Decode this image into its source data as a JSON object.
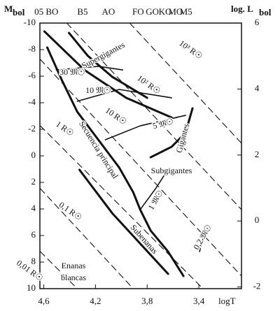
{
  "chart_data": {
    "type": "hr-diagram",
    "ylabel": "M",
    "ylabel_sub": "bol",
    "y2label": "log. L",
    "y2label_sub": "bol",
    "xlabel": "logT",
    "xlim": [
      4.63,
      3.07
    ],
    "xticks": [
      {
        "value": 4.6,
        "label": "4,6"
      },
      {
        "value": 4.2,
        "label": "4,2"
      },
      {
        "value": 3.8,
        "label": "3,8"
      },
      {
        "value": 3.4,
        "label": "3,4"
      }
    ],
    "ylim": [
      -10,
      10
    ],
    "yticks": [
      -10,
      -8,
      -6,
      -4,
      -2,
      0,
      2,
      4,
      6,
      8,
      10
    ],
    "y2lim": [
      6,
      -2.05
    ],
    "y2ticks": [
      6,
      4,
      2,
      0,
      -2
    ],
    "top_ticks": [
      {
        "value": 4.58,
        "label": "05 BO"
      },
      {
        "value": 4.3,
        "label": "B5"
      },
      {
        "value": 4.1,
        "label": "AO"
      },
      {
        "value": 3.87,
        "label": "FO"
      },
      {
        "value": 3.76,
        "label": "GO"
      },
      {
        "value": 3.66,
        "label": "KO"
      },
      {
        "value": 3.58,
        "label": "MO"
      },
      {
        "value": 3.5,
        "label": "M5"
      }
    ],
    "color": "#111111",
    "series": [
      {
        "style": "thick",
        "x": [
          4.573,
          4.459,
          4.341,
          4.178,
          4.016,
          3.908,
          3.854,
          3.773,
          3.638,
          3.519
        ],
        "y": [
          -8.16,
          -5.68,
          -3.32,
          -1.21,
          0.89,
          2.74,
          4.05,
          5.63,
          7.21,
          9.05
        ]
      },
      {
        "style": "thick",
        "x": [
          4.595,
          4.286,
          3.962,
          3.611
        ],
        "y": [
          -9.37,
          -6.47,
          -4.37,
          -2.89
        ]
      },
      {
        "style": "thick",
        "x": [
          4.405,
          4.259,
          4.07,
          3.8
        ],
        "y": [
          -9.26,
          -7.53,
          -5.95,
          -4.37
        ]
      },
      {
        "style": "thick",
        "x": [
          3.449,
          3.503,
          3.611,
          3.773
        ],
        "y": [
          -3.58,
          -1.74,
          -0.68,
          0.11
        ]
      },
      {
        "style": "thick",
        "x": [
          4.324,
          4.07,
          3.638
        ],
        "y": [
          1.05,
          4.32,
          8.89
        ]
      },
      {
        "style": "thin",
        "x": [
          4.503,
          4.178,
          3.989
        ],
        "y": [
          -6.47,
          -6.74,
          -6.47
        ]
      },
      {
        "style": "thin",
        "x": [
          4.341,
          4.016,
          3.611
        ],
        "y": [
          -4.11,
          -5.0,
          -4.37
        ]
      },
      {
        "style": "thin",
        "x": [
          4.124,
          3.854,
          3.503
        ],
        "y": [
          -1.21,
          -2.26,
          -3.05
        ]
      },
      {
        "style": "thin",
        "x": [
          3.854,
          3.735,
          3.665
        ],
        "y": [
          4.05,
          2.47,
          1.42
        ]
      },
      {
        "style": "thin",
        "x": [
          3.395,
          3.357,
          3.314
        ],
        "y": [
          7.21,
          5.89,
          5.37
        ]
      },
      {
        "style": "dashed",
        "x": [
          3.935,
          3.07
        ],
        "y": [
          -10,
          -0.95
        ]
      },
      {
        "style": "dashed",
        "x": [
          4.422,
          3.07
        ],
        "y": [
          -10,
          4.05
        ]
      },
      {
        "style": "dashed",
        "x": [
          4.627,
          3.07
        ],
        "y": [
          -7.26,
          9.05
        ]
      },
      {
        "style": "dashed",
        "x": [
          4.627,
          3.368
        ],
        "y": [
          -2.26,
          10
        ]
      },
      {
        "style": "dashed",
        "x": [
          4.627,
          3.908
        ],
        "y": [
          2.47,
          10
        ]
      },
      {
        "style": "dashed",
        "x": [
          4.627,
          4.341
        ],
        "y": [
          7.21,
          10
        ]
      }
    ],
    "annotations": [
      "Supergigantes",
      "30 𝔐☉",
      "10 𝔐☉",
      "10² R☉",
      "10³ R☉",
      "10 R☉",
      "1 R☉",
      "Secuencia principal",
      "5 𝔐☉",
      "Gigantes",
      "Subgigantes",
      "1 𝔐☉",
      "0,1 R☉",
      "0,01 R☉",
      "Subenanas",
      "0,2 𝔐☉",
      "Enanas",
      "blancas"
    ]
  }
}
